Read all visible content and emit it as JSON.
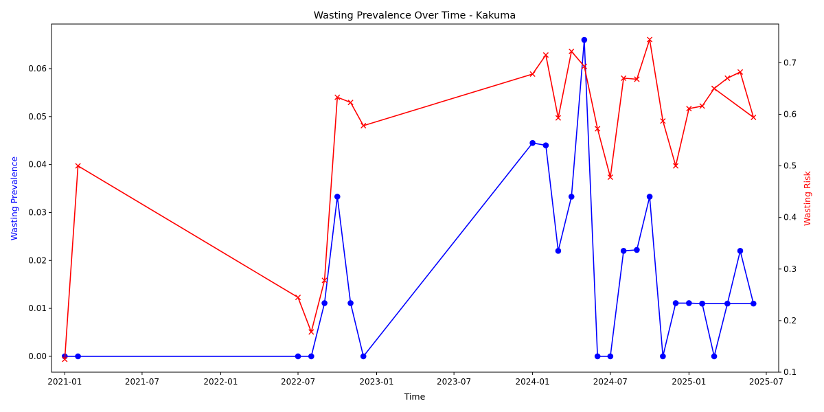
{
  "chart_data": {
    "type": "line",
    "title": "Wasting Prevalence Over Time - Kakuma",
    "xlabel": "Time",
    "ylabel_left": "Wasting Prevalence",
    "ylabel_right": "Wasting Risk",
    "xlim": [
      "2020-12-01",
      "2025-07-30"
    ],
    "ylim_left": [
      -0.0033,
      0.0693
    ],
    "ylim_right": [
      0.1,
      0.775
    ],
    "x_ticks": [
      {
        "date": "2021-01-01",
        "label": "2021-01"
      },
      {
        "date": "2021-07-01",
        "label": "2021-07"
      },
      {
        "date": "2022-01-01",
        "label": "2022-01"
      },
      {
        "date": "2022-07-01",
        "label": "2022-07"
      },
      {
        "date": "2023-01-01",
        "label": "2023-01"
      },
      {
        "date": "2023-07-01",
        "label": "2023-07"
      },
      {
        "date": "2024-01-01",
        "label": "2024-01"
      },
      {
        "date": "2024-07-01",
        "label": "2024-07"
      },
      {
        "date": "2025-01-01",
        "label": "2025-01"
      },
      {
        "date": "2025-07-01",
        "label": "2025-07"
      }
    ],
    "y_ticks_left": [
      {
        "value": 0.0,
        "label": "0.00"
      },
      {
        "value": 0.01,
        "label": "0.01"
      },
      {
        "value": 0.02,
        "label": "0.02"
      },
      {
        "value": 0.03,
        "label": "0.03"
      },
      {
        "value": 0.04,
        "label": "0.04"
      },
      {
        "value": 0.05,
        "label": "0.05"
      },
      {
        "value": 0.06,
        "label": "0.06"
      }
    ],
    "y_ticks_right": [
      {
        "value": 0.1,
        "label": "0.1"
      },
      {
        "value": 0.2,
        "label": "0.2"
      },
      {
        "value": 0.3,
        "label": "0.3"
      },
      {
        "value": 0.4,
        "label": "0.4"
      },
      {
        "value": 0.5,
        "label": "0.5"
      },
      {
        "value": 0.6,
        "label": "0.6"
      },
      {
        "value": 0.7,
        "label": "0.7"
      }
    ],
    "grid": false,
    "series": [
      {
        "axis": "left",
        "color": "#0000ff",
        "marker": "circle",
        "points": [
          {
            "x": "2021-01-01",
            "y": 0.0
          },
          {
            "x": "2021-02-01",
            "y": 0.0
          },
          {
            "x": "2022-07-01",
            "y": 0.0
          },
          {
            "x": "2022-08-01",
            "y": 0.0
          },
          {
            "x": "2022-09-01",
            "y": 0.0111
          },
          {
            "x": "2022-10-01",
            "y": 0.0333
          },
          {
            "x": "2022-11-01",
            "y": 0.0111
          },
          {
            "x": "2022-12-01",
            "y": 0.0
          },
          {
            "x": "2024-01-01",
            "y": 0.0445
          },
          {
            "x": "2024-02-01",
            "y": 0.044
          },
          {
            "x": "2024-03-01",
            "y": 0.022
          },
          {
            "x": "2024-04-01",
            "y": 0.0333
          },
          {
            "x": "2024-05-01",
            "y": 0.066
          },
          {
            "x": "2024-06-01",
            "y": 0.0
          },
          {
            "x": "2024-07-01",
            "y": 0.0
          },
          {
            "x": "2024-08-01",
            "y": 0.022
          },
          {
            "x": "2024-09-01",
            "y": 0.0222
          },
          {
            "x": "2024-10-01",
            "y": 0.0333
          },
          {
            "x": "2024-11-01",
            "y": 0.0
          },
          {
            "x": "2024-12-01",
            "y": 0.0111
          },
          {
            "x": "2025-01-01",
            "y": 0.0111
          },
          {
            "x": "2025-02-01",
            "y": 0.011
          },
          {
            "x": "2025-03-01",
            "y": 0.0
          },
          {
            "x": "2025-04-01",
            "y": 0.011
          },
          {
            "x": "2025-05-01",
            "y": 0.022
          },
          {
            "x": "2025-06-01",
            "y": 0.011
          },
          {
            "x": "2025-02-01",
            "y": 0.011
          }
        ]
      },
      {
        "axis": "right",
        "color": "#ff0000",
        "marker": "x",
        "points": [
          {
            "x": "2021-01-01",
            "y": 0.125
          },
          {
            "x": "2021-02-01",
            "y": 0.5
          },
          {
            "x": "2022-07-01",
            "y": 0.245
          },
          {
            "x": "2022-08-01",
            "y": 0.178
          },
          {
            "x": "2022-09-01",
            "y": 0.278
          },
          {
            "x": "2022-10-01",
            "y": 0.633
          },
          {
            "x": "2022-11-01",
            "y": 0.623
          },
          {
            "x": "2022-12-01",
            "y": 0.578
          },
          {
            "x": "2024-01-01",
            "y": 0.678
          },
          {
            "x": "2024-02-01",
            "y": 0.715
          },
          {
            "x": "2024-03-01",
            "y": 0.593
          },
          {
            "x": "2024-04-01",
            "y": 0.722
          },
          {
            "x": "2024-05-01",
            "y": 0.693
          },
          {
            "x": "2024-06-01",
            "y": 0.572
          },
          {
            "x": "2024-07-01",
            "y": 0.478
          },
          {
            "x": "2024-08-01",
            "y": 0.67
          },
          {
            "x": "2024-09-01",
            "y": 0.668
          },
          {
            "x": "2024-10-01",
            "y": 0.745
          },
          {
            "x": "2024-11-01",
            "y": 0.587
          },
          {
            "x": "2024-12-01",
            "y": 0.5
          },
          {
            "x": "2025-01-01",
            "y": 0.611
          },
          {
            "x": "2025-02-01",
            "y": 0.616
          },
          {
            "x": "2025-03-01",
            "y": 0.65
          },
          {
            "x": "2025-04-01",
            "y": 0.67
          },
          {
            "x": "2025-05-01",
            "y": 0.682
          },
          {
            "x": "2025-06-01",
            "y": 0.594
          },
          {
            "x": "2025-03-01",
            "y": 0.65
          }
        ]
      }
    ]
  }
}
